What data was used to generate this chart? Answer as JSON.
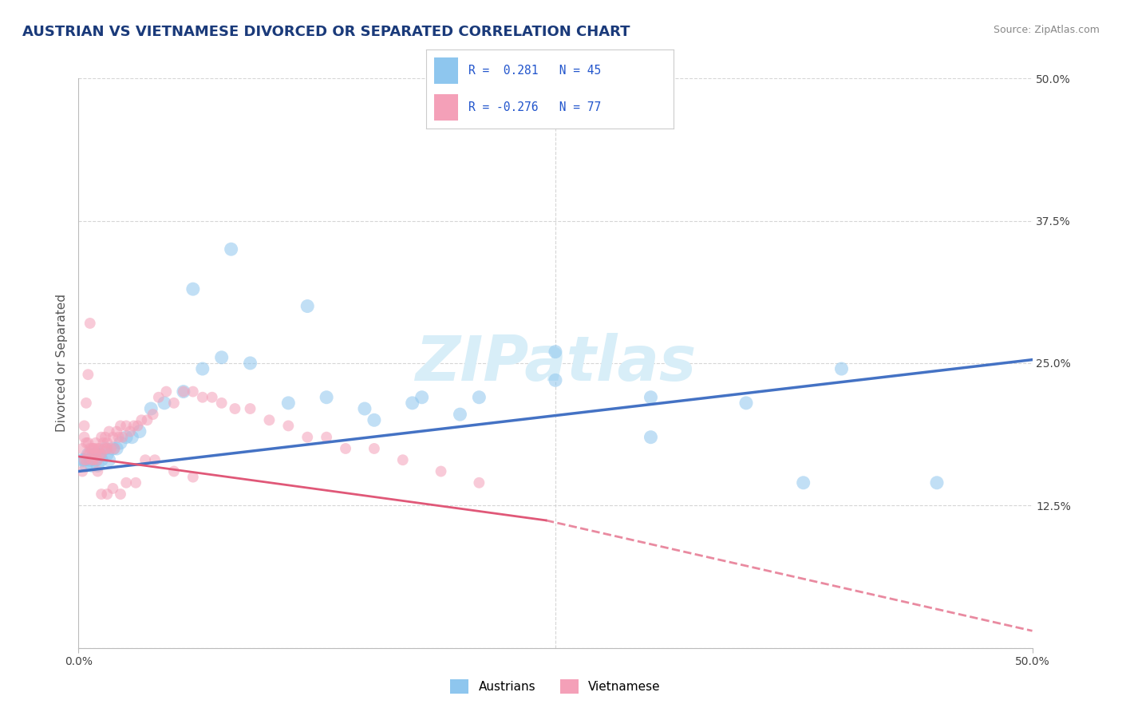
{
  "title": "AUSTRIAN VS VIETNAMESE DIVORCED OR SEPARATED CORRELATION CHART",
  "source": "Source: ZipAtlas.com",
  "ylabel": "Divorced or Separated",
  "xlim": [
    0.0,
    0.5
  ],
  "ylim": [
    0.0,
    0.5
  ],
  "yticks_right": [
    0.0,
    0.125,
    0.25,
    0.375,
    0.5
  ],
  "yticklabels_right": [
    "",
    "12.5%",
    "25.0%",
    "37.5%",
    "50.0%"
  ],
  "color_austrian": "#8ec6ee",
  "color_vietnamese": "#f4a0b8",
  "color_line_austrian": "#4472c4",
  "color_line_vietnamese": "#e05878",
  "watermark": "ZIPatlas",
  "watermark_color": "#d8eef8",
  "background_color": "#ffffff",
  "grid_color": "#cccccc",
  "title_color": "#1a3a7a",
  "axis_label_color": "#555555",
  "austrians_x": [
    0.002,
    0.003,
    0.004,
    0.005,
    0.006,
    0.007,
    0.008,
    0.009,
    0.01,
    0.011,
    0.012,
    0.014,
    0.015,
    0.016,
    0.018,
    0.02,
    0.022,
    0.025,
    0.028,
    0.032,
    0.038,
    0.045,
    0.055,
    0.065,
    0.075,
    0.09,
    0.11,
    0.13,
    0.155,
    0.175,
    0.21,
    0.25,
    0.3,
    0.35,
    0.4,
    0.3,
    0.2,
    0.15,
    0.25,
    0.18,
    0.12,
    0.08,
    0.06,
    0.45,
    0.38
  ],
  "austrians_y": [
    0.165,
    0.165,
    0.16,
    0.17,
    0.165,
    0.16,
    0.17,
    0.165,
    0.16,
    0.17,
    0.165,
    0.175,
    0.17,
    0.165,
    0.175,
    0.175,
    0.18,
    0.185,
    0.185,
    0.19,
    0.21,
    0.215,
    0.225,
    0.245,
    0.255,
    0.25,
    0.215,
    0.22,
    0.2,
    0.215,
    0.22,
    0.235,
    0.22,
    0.215,
    0.245,
    0.185,
    0.205,
    0.21,
    0.26,
    0.22,
    0.3,
    0.35,
    0.315,
    0.145,
    0.145
  ],
  "vietnamese_x": [
    0.002,
    0.003,
    0.003,
    0.004,
    0.004,
    0.005,
    0.005,
    0.006,
    0.006,
    0.007,
    0.007,
    0.008,
    0.008,
    0.009,
    0.009,
    0.01,
    0.01,
    0.011,
    0.011,
    0.012,
    0.012,
    0.013,
    0.014,
    0.014,
    0.015,
    0.015,
    0.016,
    0.017,
    0.018,
    0.019,
    0.02,
    0.021,
    0.022,
    0.023,
    0.025,
    0.027,
    0.029,
    0.031,
    0.033,
    0.036,
    0.039,
    0.042,
    0.046,
    0.05,
    0.055,
    0.06,
    0.065,
    0.07,
    0.075,
    0.082,
    0.09,
    0.1,
    0.11,
    0.12,
    0.13,
    0.14,
    0.155,
    0.17,
    0.19,
    0.21,
    0.002,
    0.003,
    0.004,
    0.005,
    0.006,
    0.008,
    0.01,
    0.012,
    0.015,
    0.018,
    0.022,
    0.025,
    0.03,
    0.035,
    0.04,
    0.05,
    0.06
  ],
  "vietnamese_y": [
    0.175,
    0.165,
    0.185,
    0.165,
    0.18,
    0.17,
    0.18,
    0.17,
    0.175,
    0.165,
    0.175,
    0.165,
    0.175,
    0.17,
    0.18,
    0.175,
    0.165,
    0.175,
    0.17,
    0.17,
    0.185,
    0.18,
    0.175,
    0.185,
    0.18,
    0.175,
    0.19,
    0.175,
    0.185,
    0.175,
    0.19,
    0.185,
    0.195,
    0.185,
    0.195,
    0.19,
    0.195,
    0.195,
    0.2,
    0.2,
    0.205,
    0.22,
    0.225,
    0.215,
    0.225,
    0.225,
    0.22,
    0.22,
    0.215,
    0.21,
    0.21,
    0.2,
    0.195,
    0.185,
    0.185,
    0.175,
    0.175,
    0.165,
    0.155,
    0.145,
    0.155,
    0.195,
    0.215,
    0.24,
    0.285,
    0.175,
    0.155,
    0.135,
    0.135,
    0.14,
    0.135,
    0.145,
    0.145,
    0.165,
    0.165,
    0.155,
    0.15
  ],
  "line_austrian_x0": 0.0,
  "line_austrian_x1": 0.5,
  "line_austrian_y0": 0.155,
  "line_austrian_y1": 0.253,
  "line_vietnamese_solid_x0": 0.0,
  "line_vietnamese_solid_x1": 0.245,
  "line_vietnamese_solid_y0": 0.168,
  "line_vietnamese_solid_y1": 0.112,
  "line_vietnamese_dash_x0": 0.245,
  "line_vietnamese_dash_x1": 0.5,
  "line_vietnamese_dash_y0": 0.112,
  "line_vietnamese_dash_y1": 0.015
}
